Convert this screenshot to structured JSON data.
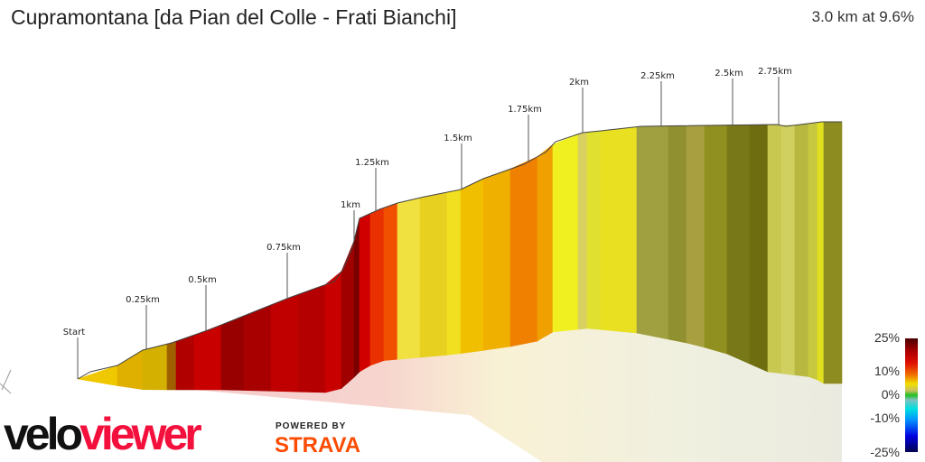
{
  "header": {
    "title": "Cupramontana [da Pian del Colle - Frati Bianchi]",
    "summary": "3.0 km at 9.6%"
  },
  "markers": [
    "Start",
    "0.25km",
    "0.5km",
    "0.75km",
    "1km",
    "1.25km",
    "1.5km",
    "1.75km",
    "2km",
    "2.25km",
    "2.5km",
    "2.75km"
  ],
  "legend": {
    "labels": [
      "25%",
      "10%",
      "0%",
      "-10%",
      "-25%"
    ]
  },
  "branding": {
    "logo_part1": "velo",
    "logo_part2": "viewer",
    "powered_by": "POWERED BY",
    "strava": "STRAVA"
  },
  "colors": {
    "logo_red": "#f4103c",
    "strava_orange": "#fc4c02"
  }
}
